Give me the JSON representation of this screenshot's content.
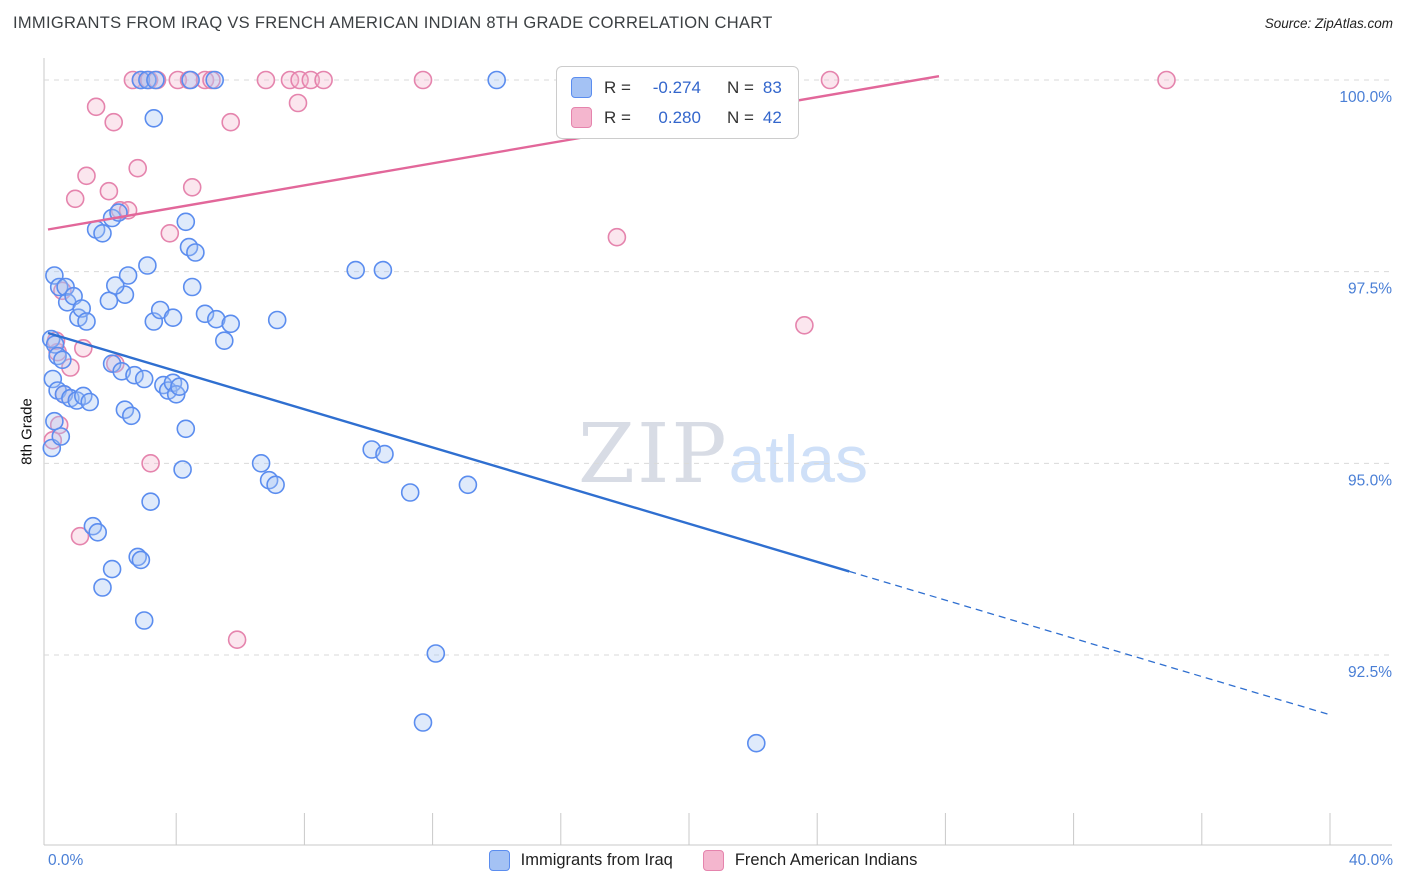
{
  "header": {
    "source": "Source: ZipAtlas.com"
  },
  "watermark": {
    "zip": "ZIP",
    "atlas": "atlas"
  },
  "legend": {
    "rows": [
      {
        "series": "Immigrants from Iraq",
        "r_label": "R =",
        "r_value": "-0.274",
        "n_label": "N =",
        "n_value": "83"
      },
      {
        "series": "French American Indians",
        "r_label": "R =",
        "r_value": "0.280",
        "n_label": "N =",
        "n_value": "42"
      }
    ]
  },
  "bottom_legend": {
    "items": [
      {
        "label": "Immigrants from Iraq"
      },
      {
        "label": "French American Indians"
      }
    ]
  },
  "x_axis": {
    "left_label": "0.0%",
    "right_label": "40.0%"
  },
  "chart_data": {
    "type": "scatter",
    "title": "IMMIGRANTS FROM IRAQ VS FRENCH AMERICAN INDIAN 8TH GRADE CORRELATION CHART",
    "xlabel": "",
    "ylabel": "8th Grade",
    "xlim": [
      0,
      40
    ],
    "ylim": [
      90,
      100.5
    ],
    "grid": "horizontal-dashed",
    "legend_position": "top-center",
    "x_ticks_percent": [
      0,
      4,
      8,
      12,
      16,
      20,
      24,
      28,
      32,
      36,
      40
    ],
    "x_axis_labels": [
      "0.0%",
      "40.0%"
    ],
    "y_ticks": [
      {
        "value": 100.0,
        "label": "100.0%"
      },
      {
        "value": 97.5,
        "label": "97.5%"
      },
      {
        "value": 95.0,
        "label": "95.0%"
      },
      {
        "value": 92.5,
        "label": "92.5%"
      }
    ],
    "series": [
      {
        "name": "Immigrants from Iraq",
        "color": "#5B8DEF",
        "fill": "#A4C2F4",
        "R": -0.274,
        "N": 83,
        "points": [
          [
            0.2,
            97.45
          ],
          [
            0.35,
            97.3
          ],
          [
            0.55,
            97.3
          ],
          [
            0.6,
            97.1
          ],
          [
            0.8,
            97.18
          ],
          [
            0.95,
            96.9
          ],
          [
            1.05,
            97.02
          ],
          [
            1.2,
            96.85
          ],
          [
            0.1,
            96.62
          ],
          [
            0.22,
            96.55
          ],
          [
            0.3,
            96.4
          ],
          [
            0.45,
            96.35
          ],
          [
            0.15,
            96.1
          ],
          [
            0.3,
            95.95
          ],
          [
            0.5,
            95.9
          ],
          [
            0.7,
            95.85
          ],
          [
            0.9,
            95.82
          ],
          [
            0.2,
            95.55
          ],
          [
            0.12,
            95.2
          ],
          [
            1.1,
            95.88
          ],
          [
            1.3,
            95.8
          ],
          [
            2.0,
            98.2
          ],
          [
            2.2,
            98.27
          ],
          [
            1.5,
            98.05
          ],
          [
            1.7,
            98.0
          ],
          [
            4.3,
            98.15
          ],
          [
            4.4,
            97.82
          ],
          [
            4.6,
            97.75
          ],
          [
            2.9,
            100.0
          ],
          [
            3.1,
            100.0
          ],
          [
            3.35,
            100.0
          ],
          [
            4.45,
            100.0
          ],
          [
            5.2,
            100.0
          ],
          [
            14.0,
            100.0
          ],
          [
            3.3,
            99.5
          ],
          [
            2.4,
            97.2
          ],
          [
            1.9,
            97.12
          ],
          [
            3.3,
            96.85
          ],
          [
            3.5,
            97.0
          ],
          [
            3.9,
            96.9
          ],
          [
            4.9,
            96.95
          ],
          [
            5.25,
            96.88
          ],
          [
            5.7,
            96.82
          ],
          [
            7.15,
            96.87
          ],
          [
            9.6,
            97.52
          ],
          [
            10.45,
            97.52
          ],
          [
            2.5,
            97.45
          ],
          [
            3.1,
            97.58
          ],
          [
            2.0,
            96.3
          ],
          [
            2.3,
            96.2
          ],
          [
            2.7,
            96.15
          ],
          [
            3.0,
            96.1
          ],
          [
            3.6,
            96.02
          ],
          [
            3.75,
            95.95
          ],
          [
            3.9,
            96.05
          ],
          [
            4.0,
            95.9
          ],
          [
            4.1,
            96.0
          ],
          [
            2.4,
            95.7
          ],
          [
            2.6,
            95.62
          ],
          [
            4.3,
            95.45
          ],
          [
            6.65,
            95.0
          ],
          [
            4.2,
            94.92
          ],
          [
            10.1,
            95.18
          ],
          [
            10.5,
            95.12
          ],
          [
            6.9,
            94.78
          ],
          [
            7.1,
            94.72
          ],
          [
            11.3,
            94.62
          ],
          [
            13.1,
            94.72
          ],
          [
            3.2,
            94.5
          ],
          [
            1.4,
            94.18
          ],
          [
            1.55,
            94.1
          ],
          [
            2.0,
            93.62
          ],
          [
            2.8,
            93.78
          ],
          [
            2.9,
            93.74
          ],
          [
            1.7,
            93.38
          ],
          [
            3.0,
            92.95
          ],
          [
            12.1,
            92.52
          ],
          [
            11.7,
            91.62
          ],
          [
            22.1,
            91.35
          ],
          [
            4.5,
            97.3
          ],
          [
            2.1,
            97.32
          ],
          [
            0.4,
            95.35
          ],
          [
            5.5,
            96.6
          ]
        ]
      },
      {
        "name": "French American Indians",
        "color": "#E584AD",
        "fill": "#F4B6CE",
        "R": 0.28,
        "N": 42,
        "points": [
          [
            2.65,
            100.0
          ],
          [
            2.9,
            100.0
          ],
          [
            3.15,
            100.0
          ],
          [
            3.4,
            100.0
          ],
          [
            4.05,
            100.0
          ],
          [
            4.4,
            100.0
          ],
          [
            4.9,
            100.0
          ],
          [
            5.1,
            100.0
          ],
          [
            6.8,
            100.0
          ],
          [
            7.55,
            100.0
          ],
          [
            7.85,
            100.0
          ],
          [
            8.2,
            100.0
          ],
          [
            8.6,
            100.0
          ],
          [
            11.7,
            100.0
          ],
          [
            24.4,
            100.0
          ],
          [
            34.9,
            100.0
          ],
          [
            1.5,
            99.65
          ],
          [
            2.05,
            99.45
          ],
          [
            5.7,
            99.45
          ],
          [
            7.8,
            99.7
          ],
          [
            2.8,
            98.85
          ],
          [
            1.2,
            98.75
          ],
          [
            4.5,
            98.6
          ],
          [
            1.9,
            98.55
          ],
          [
            0.85,
            98.45
          ],
          [
            2.25,
            98.3
          ],
          [
            2.5,
            98.3
          ],
          [
            3.8,
            98.0
          ],
          [
            17.75,
            97.95
          ],
          [
            0.45,
            97.25
          ],
          [
            23.6,
            96.8
          ],
          [
            3.2,
            95.0
          ],
          [
            1.0,
            94.05
          ],
          [
            5.9,
            92.7
          ],
          [
            0.3,
            96.45
          ],
          [
            0.7,
            96.25
          ],
          [
            0.35,
            95.5
          ],
          [
            0.25,
            96.6
          ],
          [
            1.1,
            96.5
          ],
          [
            0.5,
            95.9
          ],
          [
            2.1,
            96.3
          ],
          [
            0.15,
            95.3
          ]
        ]
      }
    ],
    "trend_lines": [
      {
        "series": "Immigrants from Iraq",
        "color": "#2F6FD0",
        "start": [
          0,
          96.7
        ],
        "solid_end": [
          25,
          93.59
        ],
        "end": [
          40,
          91.72
        ],
        "dashed_tail": true
      },
      {
        "series": "French American Indians",
        "color": "#E2679A",
        "start": [
          0,
          98.05
        ],
        "end": [
          27.8,
          100.05
        ],
        "dashed_tail": false
      }
    ]
  }
}
